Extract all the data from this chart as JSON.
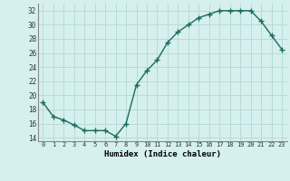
{
  "x": [
    0,
    1,
    2,
    3,
    4,
    5,
    6,
    7,
    8,
    9,
    10,
    11,
    12,
    13,
    14,
    15,
    16,
    17,
    18,
    19,
    20,
    21,
    22,
    23
  ],
  "y": [
    19,
    17,
    16.5,
    15.8,
    15,
    15,
    15,
    14.2,
    16,
    21.5,
    23.5,
    25,
    27.5,
    29,
    30,
    31,
    31.5,
    32,
    32,
    32,
    32,
    30.5,
    28.5,
    26.5
  ],
  "line_color": "#1a6b5a",
  "marker": "+",
  "marker_size": 4,
  "bg_color": "#d5f0ee",
  "grid_color": "#b8dbd8",
  "xlabel": "Humidex (Indice chaleur)",
  "ylabel_ticks": [
    14,
    16,
    18,
    20,
    22,
    24,
    26,
    28,
    30,
    32
  ],
  "xtick_labels": [
    "0",
    "1",
    "2",
    "3",
    "4",
    "5",
    "6",
    "7",
    "8",
    "9",
    "10",
    "11",
    "12",
    "13",
    "14",
    "15",
    "16",
    "17",
    "18",
    "19",
    "20",
    "21",
    "22",
    "23"
  ],
  "xlim": [
    -0.5,
    23.5
  ],
  "ylim": [
    13.5,
    33.0
  ]
}
